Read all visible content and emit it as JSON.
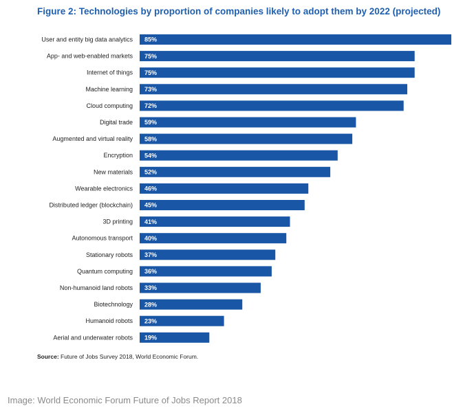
{
  "chart_data": {
    "type": "bar",
    "orientation": "horizontal",
    "title": "Figure 2: Technologies by proportion of companies likely to adopt them by 2022 (projected)",
    "categories": [
      "User and entity big data analytics",
      "App- and web-enabled markets",
      "Internet of things",
      "Machine learning",
      "Cloud computing",
      "Digital trade",
      "Augmented and virtual reality",
      "Encryption",
      "New materials",
      "Wearable electronics",
      "Distributed ledger (blockchain)",
      "3D printing",
      "Autonomous transport",
      "Stationary robots",
      "Quantum computing",
      "Non-humanoid land robots",
      "Biotechnology",
      "Humanoid robots",
      "Aerial and underwater robots"
    ],
    "values": [
      85,
      75,
      75,
      73,
      72,
      59,
      58,
      54,
      52,
      46,
      45,
      41,
      40,
      37,
      36,
      33,
      28,
      23,
      19
    ],
    "value_suffix": "%",
    "xlim": [
      0,
      85
    ],
    "grid": false,
    "bar_color": "#1a56a6"
  },
  "source": {
    "label": "Source:",
    "text": " Future of Jobs Survey 2018, World Economic Forum."
  },
  "credit": "Image: World Economic Forum Future of Jobs Report 2018",
  "colors": {
    "title": "#1f5fb0",
    "bar": "#1a56a6",
    "bar_label": "#ffffff",
    "category_label": "#222222",
    "credit": "#8a8a8a"
  }
}
